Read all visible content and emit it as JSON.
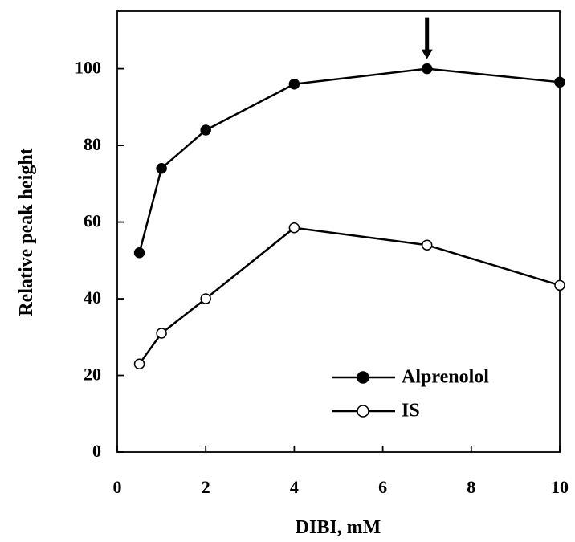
{
  "chart_data": {
    "type": "line",
    "title": "",
    "xlabel": "DIBI, mM",
    "ylabel": "Relative peak height",
    "xlim": [
      0,
      10
    ],
    "ylim": [
      0,
      115
    ],
    "x_ticks": [
      0,
      2,
      4,
      6,
      8,
      10
    ],
    "y_ticks": [
      0,
      20,
      40,
      60,
      80,
      100
    ],
    "grid": false,
    "legend_position": "bottom-right",
    "series": [
      {
        "name": "Alprenolol",
        "marker": "filled-circle",
        "color": "#000000",
        "x": [
          0.5,
          1,
          2,
          4,
          7,
          10
        ],
        "y": [
          52,
          74,
          84,
          96,
          100,
          96.5
        ]
      },
      {
        "name": "IS",
        "marker": "open-circle",
        "color": "#000000",
        "x": [
          0.5,
          1,
          2,
          4,
          7,
          10
        ],
        "y": [
          23,
          31,
          40,
          58.5,
          54,
          43.5
        ]
      }
    ],
    "annotations": [
      {
        "type": "arrow-down",
        "x": 7,
        "y": 100
      }
    ]
  }
}
